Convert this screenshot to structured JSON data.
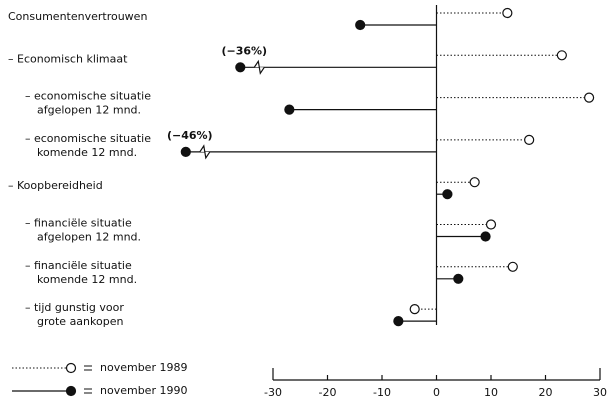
{
  "chart_data": {
    "type": "dot",
    "categories": [
      [
        "Consumentenvertrouwen"
      ],
      [
        "– Economisch klimaat"
      ],
      [
        "– economische situatie",
        "afgelopen 12 mnd."
      ],
      [
        "– economische situatie",
        "komende 12 mnd."
      ],
      [
        "– Koopbereidheid"
      ],
      [
        "– financiële situatie",
        "afgelopen 12 mnd."
      ],
      [
        "– financiële situatie",
        "komende 12 mnd."
      ],
      [
        "– tijd gunstig voor",
        "grote aankopen"
      ]
    ],
    "series": [
      {
        "name": "november 1989",
        "color": "#111111",
        "marker": "open",
        "line": "dotted",
        "values": [
          13,
          23,
          28,
          17,
          7,
          10,
          14,
          -4
        ]
      },
      {
        "name": "november 1990",
        "color": "#111111",
        "marker": "filled",
        "line": "solid",
        "values": [
          -14,
          -36,
          -27,
          -46,
          2,
          9,
          4,
          -7
        ],
        "value_labels": [
          null,
          "(−36%)",
          null,
          "(−46%)",
          null,
          null,
          null,
          null
        ]
      }
    ],
    "xlim": [
      -30,
      30
    ],
    "xticks": [
      -30,
      -20,
      -10,
      0,
      10,
      20,
      30
    ],
    "legend": "bottom-left"
  }
}
